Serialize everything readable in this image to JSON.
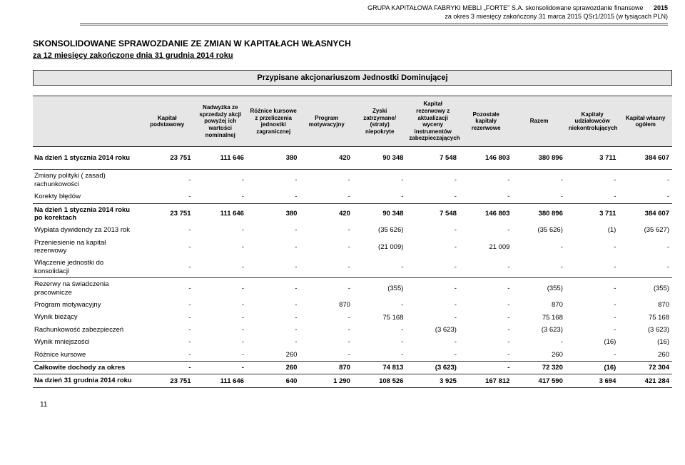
{
  "header": {
    "line1": "GRUPA KAPITAŁOWA FABRYKI MEBLI „FORTE\" S.A.  skonsolidowane sprawozdanie finansowe",
    "line2": "za okres 3 miesięcy zakończony 31 marca 2015  QSr1/2015 (w tysiącach PLN)",
    "year": "2015"
  },
  "section": {
    "title": "SKONSOLIDOWANE SPRAWOZDANIE ZE ZMIAN W KAPITAŁACH WŁASNYCH",
    "subtitle": "za 12 miesięcy zakończone dnia 31 grudnia 2014 roku"
  },
  "banner": "Przypisane akcjonariuszom Jednostki Dominującej",
  "columns": [
    "",
    "Kapitał podstawowy",
    "Nadwyżka ze sprzedaży akcji powyżej ich wartości nominalnej",
    "Różnice kursowe z przeliczenia jednostki zagranicznej",
    "Program motywacyjny",
    "Zyski zatrzymane/ (straty) niepokryte",
    "Kapitał rezerwowy z aktualizacji wyceny instrumentów zabezpieczających",
    "Pozostałe kapitały rezerwowe",
    "Razem",
    "Kapitały udziałowców niekontrolujących",
    "Kapitał własny ogółem"
  ],
  "rows": [
    {
      "label": "Na dzień 1 stycznia 2014 roku",
      "vals": [
        "23 751",
        "111 646",
        "380",
        "420",
        "90 348",
        "7 548",
        "146 803",
        "380 896",
        "3 711",
        "384 607"
      ],
      "bold": true,
      "sep": true,
      "gap": true
    },
    {
      "label": "Zmiany polityki ( zasad) rachunkowości",
      "vals": [
        "-",
        "-",
        "-",
        "-",
        "-",
        "-",
        "-",
        "-",
        "-",
        "-"
      ],
      "sep_top": true
    },
    {
      "label": "Korekty błędów",
      "vals": [
        "-",
        "-",
        "-",
        "-",
        "-",
        "-",
        "-",
        "-",
        "-",
        "-"
      ],
      "sep": true
    },
    {
      "label": "Na dzień 1 stycznia 2014 roku po korektach",
      "vals": [
        "23 751",
        "111 646",
        "380",
        "420",
        "90 348",
        "7 548",
        "146 803",
        "380 896",
        "3 711",
        "384 607"
      ],
      "bold": true
    },
    {
      "label": "Wypłata dywidendy za 2013 rok",
      "vals": [
        "-",
        "-",
        "-",
        "-",
        "(35 626)",
        "-",
        "-",
        "(35 626)",
        "(1)",
        "(35 627)"
      ]
    },
    {
      "label": "Przeniesienie na kapitał rezerwowy",
      "vals": [
        "-",
        "-",
        "-",
        "-",
        "(21 009)",
        "-",
        "21 009",
        "-",
        "-",
        "-"
      ]
    },
    {
      "label": "Włączenie jednostki do konsolidacji",
      "vals": [
        "-",
        "-",
        "-",
        "-",
        "-",
        "-",
        "-",
        "-",
        "-",
        "-"
      ],
      "sep": true
    },
    {
      "label": "Rezerwy na świadczenia pracownicze",
      "vals": [
        "-",
        "-",
        "-",
        "-",
        "(355)",
        "-",
        "-",
        "(355)",
        "-",
        "(355)"
      ],
      "sep_top": true
    },
    {
      "label": "Program motywacyjny",
      "vals": [
        "-",
        "-",
        "-",
        "870",
        "-",
        "-",
        "-",
        "870",
        "-",
        "870"
      ]
    },
    {
      "label": "Wynik bieżący",
      "vals": [
        "-",
        "-",
        "-",
        "-",
        "75 168",
        "-",
        "-",
        "75 168",
        "-",
        "75 168"
      ]
    },
    {
      "label": "Rachunkowość zabezpieczeń",
      "vals": [
        "-",
        "-",
        "-",
        "-",
        "-",
        "(3 623)",
        "-",
        "(3 623)",
        "-",
        "(3 623)"
      ]
    },
    {
      "label": "Wynik mniejszości",
      "vals": [
        "-",
        "-",
        "-",
        "-",
        "-",
        "-",
        "-",
        "-",
        "(16)",
        "(16)"
      ]
    },
    {
      "label": "Różnice kursowe",
      "vals": [
        "-",
        "-",
        "260",
        "-",
        "-",
        "-",
        "-",
        "260",
        "-",
        "260"
      ],
      "sep": true
    },
    {
      "label": "Całkowite dochody za okres",
      "vals": [
        "-",
        "-",
        "260",
        "870",
        "74 813",
        "(3 623)",
        "-",
        "72 320",
        "(16)",
        "72 304"
      ],
      "bold": true,
      "sep": true
    },
    {
      "label": "Na dzień 31 grudnia 2014 roku",
      "vals": [
        "23 751",
        "111 646",
        "640",
        "1 290",
        "108 526",
        "3 925",
        "167 812",
        "417 590",
        "3 694",
        "421 284"
      ],
      "bold": true,
      "sep": true
    }
  ],
  "pageNumber": "11"
}
